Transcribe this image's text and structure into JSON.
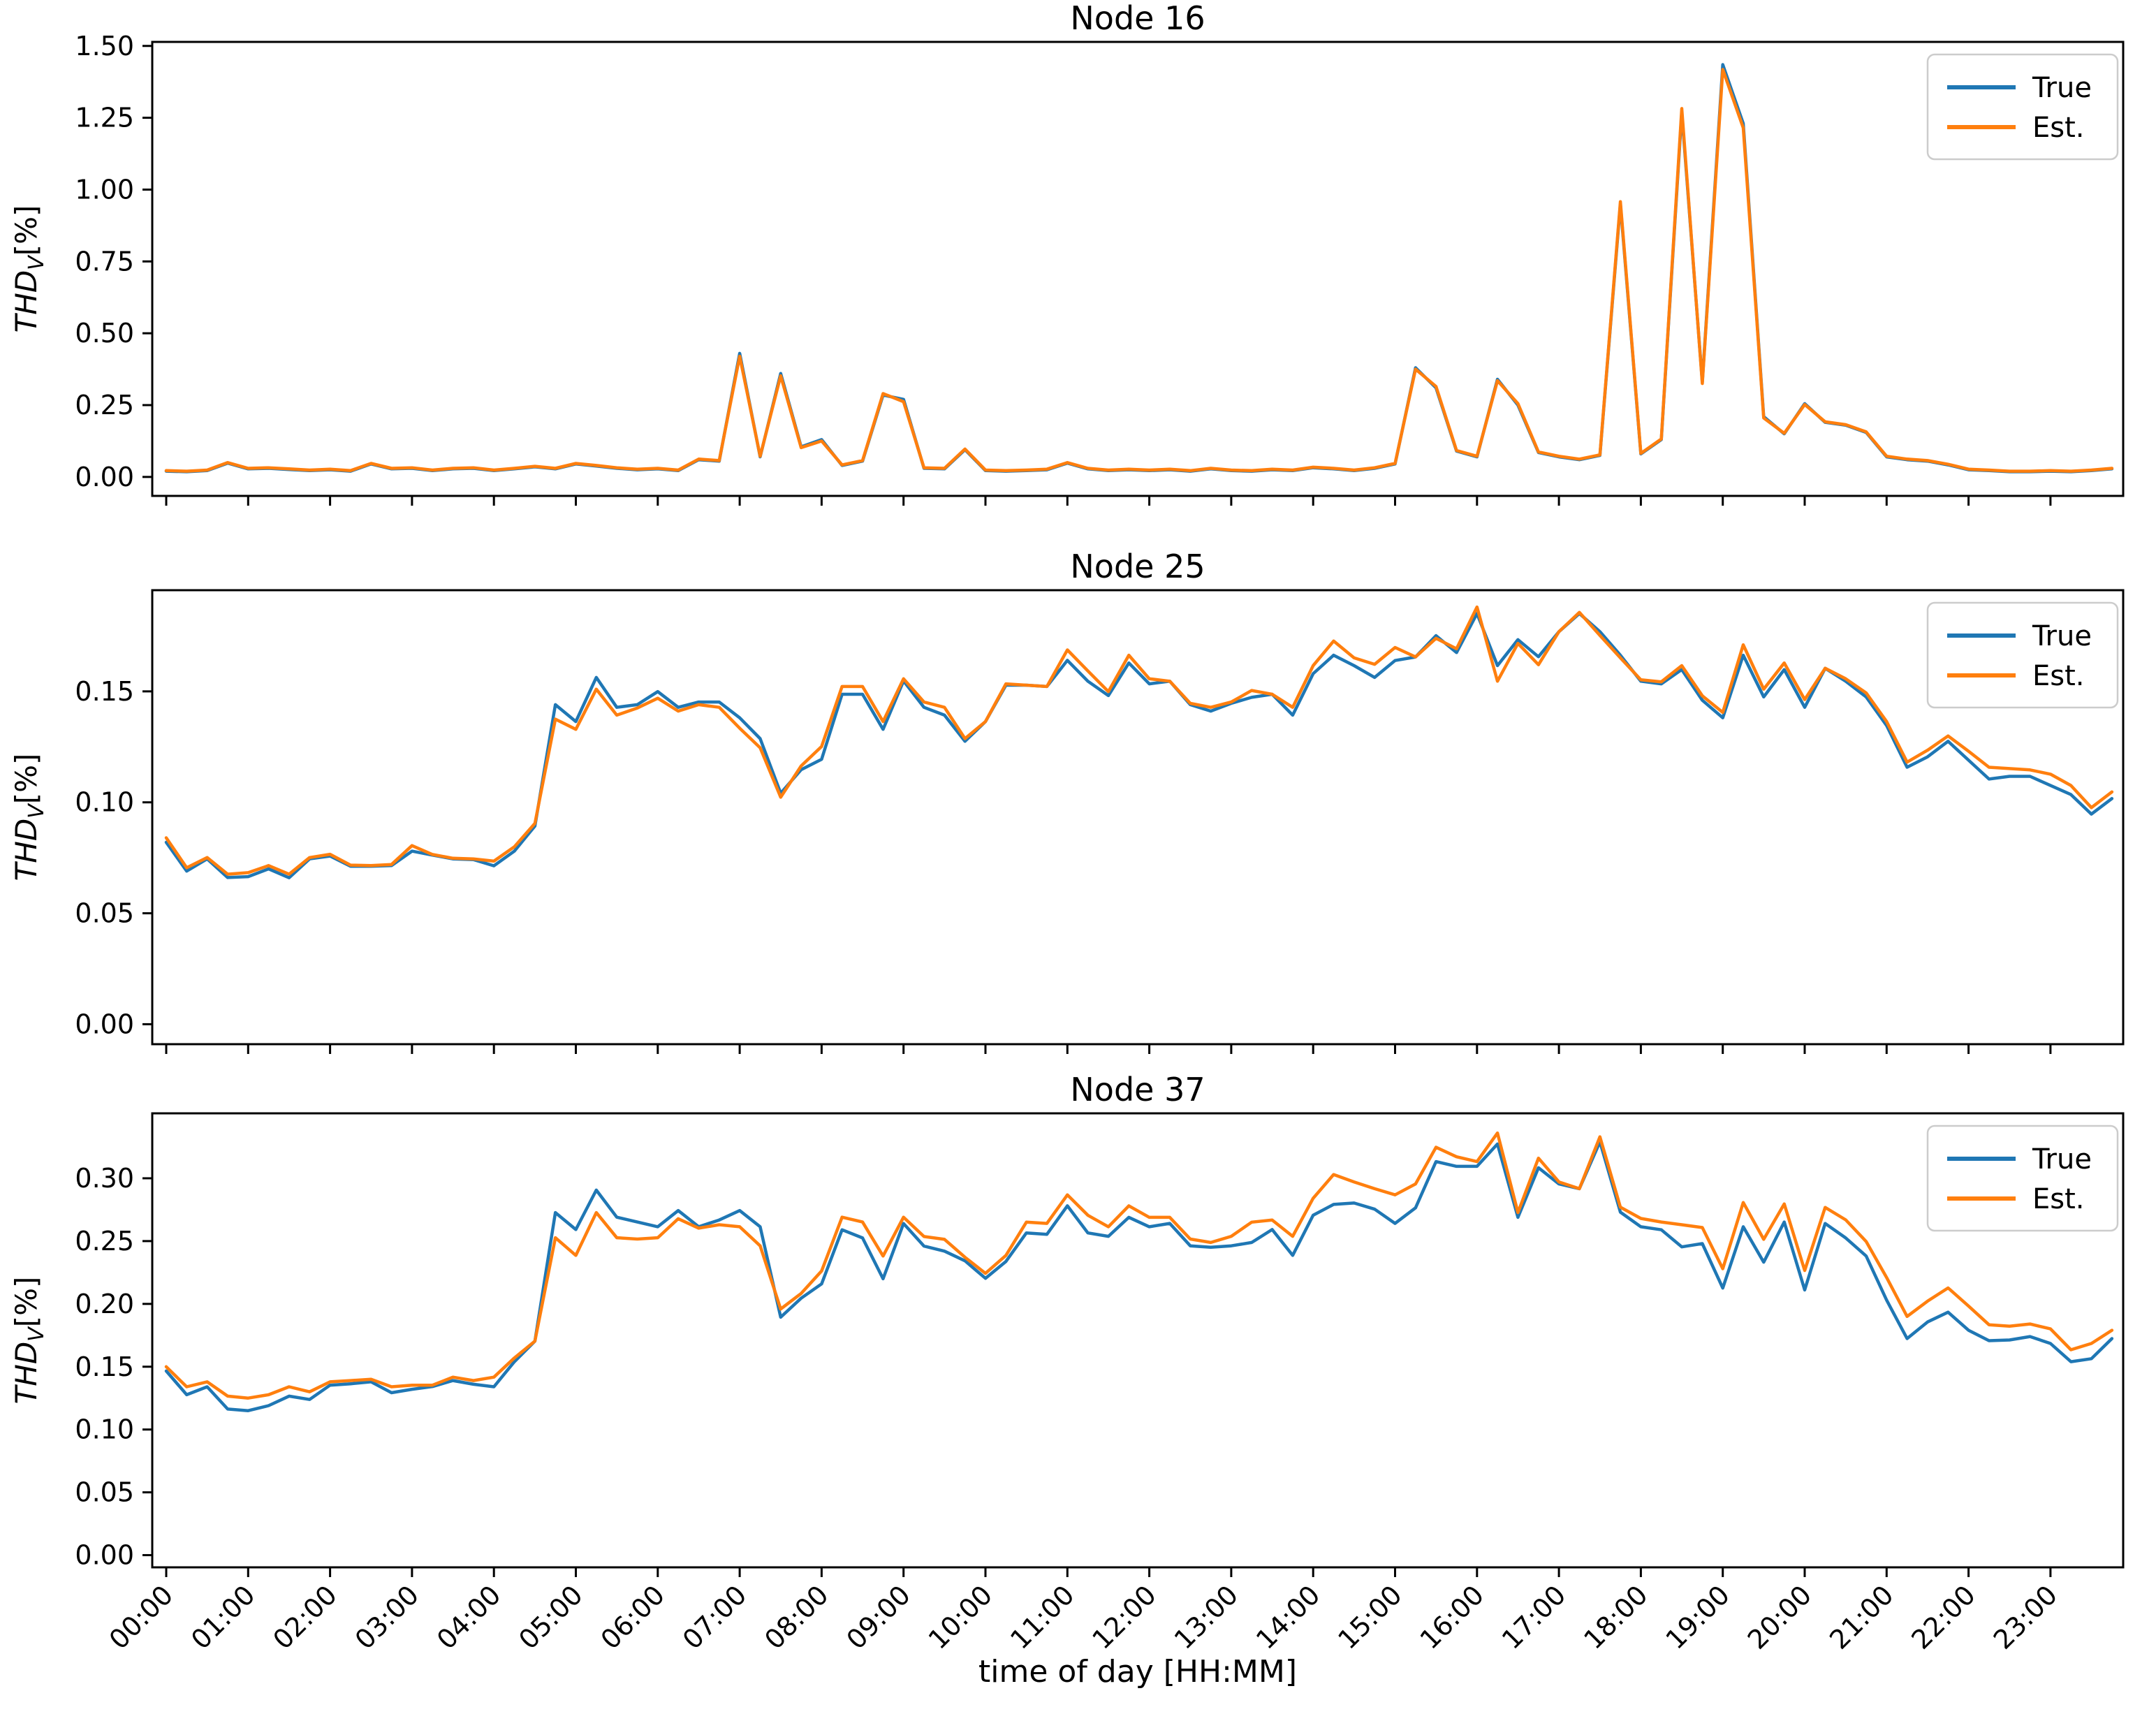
{
  "figure": {
    "xlabel": "time of day [HH:MM]",
    "ylabel": {
      "main": "THD",
      "sub": "V",
      "unit": "[%]"
    },
    "legend": {
      "true_label": "True",
      "est_label": "Est."
    },
    "colors": {
      "true": "#1f77b4",
      "est": "#ff7f0e",
      "spine": "#000000",
      "legend_edge": "#cccccc"
    },
    "xticklabels": [
      "00:00",
      "01:00",
      "02:00",
      "03:00",
      "04:00",
      "05:00",
      "06:00",
      "07:00",
      "08:00",
      "09:00",
      "10:00",
      "11:00",
      "12:00",
      "13:00",
      "14:00",
      "15:00",
      "16:00",
      "17:00",
      "18:00",
      "19:00",
      "20:00",
      "21:00",
      "22:00",
      "23:00"
    ]
  },
  "chart_data": [
    {
      "type": "line",
      "title": "Node 16",
      "xlabel": "time of day [HH:MM]",
      "ylabel": "THD_V[%]",
      "x_start": "00:00",
      "x_step_minutes": 15,
      "ylim": [
        -0.066,
        1.514
      ],
      "yticks": [
        0.0,
        0.25,
        0.5,
        0.75,
        1.0,
        1.25,
        1.5
      ],
      "grid": false,
      "legend_position": "upper right",
      "series": [
        {
          "name": "True",
          "values": [
            0.02,
            0.018,
            0.022,
            0.048,
            0.028,
            0.03,
            0.026,
            0.022,
            0.025,
            0.02,
            0.045,
            0.028,
            0.03,
            0.022,
            0.028,
            0.03,
            0.022,
            0.028,
            0.035,
            0.028,
            0.045,
            0.038,
            0.03,
            0.025,
            0.028,
            0.022,
            0.06,
            0.055,
            0.43,
            0.07,
            0.36,
            0.105,
            0.13,
            0.04,
            0.055,
            0.285,
            0.27,
            0.03,
            0.028,
            0.095,
            0.022,
            0.02,
            0.022,
            0.025,
            0.048,
            0.028,
            0.022,
            0.025,
            0.022,
            0.025,
            0.02,
            0.028,
            0.022,
            0.02,
            0.025,
            0.022,
            0.032,
            0.028,
            0.022,
            0.03,
            0.045,
            0.38,
            0.31,
            0.09,
            0.07,
            0.34,
            0.25,
            0.085,
            0.07,
            0.06,
            0.075,
            0.95,
            0.08,
            0.13,
            1.27,
            0.33,
            1.435,
            1.23,
            0.21,
            0.15,
            0.255,
            0.19,
            0.18,
            0.155,
            0.07,
            0.06,
            0.055,
            0.042,
            0.025,
            0.022,
            0.018,
            0.018,
            0.02,
            0.018,
            0.022,
            0.028
          ]
        },
        {
          "name": "Est.",
          "values": [
            0.022,
            0.02,
            0.024,
            0.05,
            0.03,
            0.032,
            0.028,
            0.024,
            0.027,
            0.022,
            0.047,
            0.03,
            0.032,
            0.024,
            0.03,
            0.032,
            0.024,
            0.03,
            0.037,
            0.03,
            0.047,
            0.04,
            0.032,
            0.027,
            0.03,
            0.024,
            0.062,
            0.057,
            0.42,
            0.072,
            0.352,
            0.102,
            0.125,
            0.042,
            0.057,
            0.29,
            0.262,
            0.032,
            0.03,
            0.097,
            0.024,
            0.022,
            0.024,
            0.027,
            0.05,
            0.03,
            0.024,
            0.027,
            0.024,
            0.027,
            0.022,
            0.03,
            0.024,
            0.022,
            0.027,
            0.024,
            0.034,
            0.03,
            0.024,
            0.032,
            0.047,
            0.375,
            0.315,
            0.092,
            0.072,
            0.335,
            0.255,
            0.087,
            0.072,
            0.062,
            0.077,
            0.958,
            0.082,
            0.132,
            1.282,
            0.325,
            1.418,
            1.215,
            0.205,
            0.152,
            0.252,
            0.192,
            0.182,
            0.157,
            0.072,
            0.062,
            0.057,
            0.044,
            0.027,
            0.024,
            0.02,
            0.02,
            0.022,
            0.02,
            0.024,
            0.03
          ]
        }
      ]
    },
    {
      "type": "line",
      "title": "Node 25",
      "xlabel": "time of day [HH:MM]",
      "ylabel": "THD_V[%]",
      "x_start": "00:00",
      "x_step_minutes": 15,
      "ylim": [
        -0.009,
        0.1956
      ],
      "yticks": [
        0.0,
        0.05,
        0.1,
        0.15
      ],
      "grid": false,
      "legend_position": "upper right",
      "series": [
        {
          "name": "True",
          "values": [
            0.082,
            0.069,
            0.0745,
            0.0661,
            0.0665,
            0.07,
            0.066,
            0.0745,
            0.0758,
            0.0712,
            0.0712,
            0.0715,
            0.078,
            0.0762,
            0.0745,
            0.0742,
            0.0714,
            0.078,
            0.0893,
            0.144,
            0.1364,
            0.1563,
            0.1428,
            0.144,
            0.1499,
            0.1428,
            0.1452,
            0.1452,
            0.1381,
            0.1287,
            0.1041,
            0.1147,
            0.1194,
            0.1487,
            0.1487,
            0.1329,
            0.1547,
            0.1428,
            0.1393,
            0.1275,
            0.1364,
            0.1528,
            0.1528,
            0.1522,
            0.164,
            0.1546,
            0.1481,
            0.1628,
            0.1534,
            0.1546,
            0.144,
            0.1411,
            0.1446,
            0.1473,
            0.1487,
            0.1393,
            0.158,
            0.1663,
            0.1616,
            0.1563,
            0.1639,
            0.1655,
            0.1751,
            0.1675,
            0.1851,
            0.1616,
            0.1733,
            0.1656,
            0.1769,
            0.1851,
            0.1769,
            0.1663,
            0.1546,
            0.1534,
            0.1598,
            0.146,
            0.1381,
            0.1663,
            0.1475,
            0.1598,
            0.1428,
            0.1604,
            0.1546,
            0.1475,
            0.1346,
            0.1158,
            0.1205,
            0.1275,
            0.119,
            0.1105,
            0.1117,
            0.1117,
            0.1076,
            0.1035,
            0.0947,
            0.1017
          ]
        },
        {
          "name": "Est.",
          "values": [
            0.084,
            0.0705,
            0.0751,
            0.0676,
            0.0683,
            0.0715,
            0.0676,
            0.0751,
            0.0766,
            0.0717,
            0.0715,
            0.072,
            0.0805,
            0.0765,
            0.0748,
            0.0745,
            0.0735,
            0.08,
            0.0905,
            0.1375,
            0.1329,
            0.151,
            0.1393,
            0.1425,
            0.1469,
            0.1411,
            0.144,
            0.1428,
            0.1334,
            0.1246,
            0.1023,
            0.1164,
            0.1252,
            0.1522,
            0.1522,
            0.1364,
            0.1557,
            0.1452,
            0.1428,
            0.1287,
            0.1364,
            0.1534,
            0.1528,
            0.1522,
            0.1687,
            0.1592,
            0.1499,
            0.1663,
            0.1557,
            0.1546,
            0.1446,
            0.1428,
            0.1452,
            0.1504,
            0.1487,
            0.1428,
            0.1616,
            0.1727,
            0.1651,
            0.1622,
            0.1698,
            0.1655,
            0.1739,
            0.1692,
            0.188,
            0.1546,
            0.1716,
            0.162,
            0.1769,
            0.1856,
            0.1752,
            0.1651,
            0.1552,
            0.1543,
            0.1616,
            0.148,
            0.1405,
            0.171,
            0.151,
            0.1628,
            0.1463,
            0.1604,
            0.1557,
            0.1493,
            0.1364,
            0.1181,
            0.1235,
            0.1299,
            0.123,
            0.1158,
            0.1152,
            0.1146,
            0.1127,
            0.1076,
            0.0976,
            0.1047
          ]
        }
      ]
    },
    {
      "type": "line",
      "title": "Node 37",
      "xlabel": "time of day [HH:MM]",
      "ylabel": "THD_V[%]",
      "x_start": "00:00",
      "x_step_minutes": 15,
      "ylim": [
        -0.0097,
        0.3517
      ],
      "yticks": [
        0.0,
        0.05,
        0.1,
        0.15,
        0.2,
        0.25,
        0.3
      ],
      "grid": false,
      "legend_position": "upper right",
      "series": [
        {
          "name": "True",
          "values": [
            0.1466,
            0.1277,
            0.134,
            0.1163,
            0.115,
            0.119,
            0.1266,
            0.1239,
            0.1353,
            0.1364,
            0.138,
            0.1293,
            0.132,
            0.1342,
            0.139,
            0.136,
            0.134,
            0.154,
            0.1704,
            0.2727,
            0.2592,
            0.2906,
            0.269,
            0.2652,
            0.2614,
            0.2743,
            0.2614,
            0.2668,
            0.2743,
            0.2614,
            0.1894,
            0.2045,
            0.2159,
            0.259,
            0.2525,
            0.22,
            0.264,
            0.246,
            0.242,
            0.2343,
            0.2204,
            0.2338,
            0.2565,
            0.2554,
            0.2781,
            0.2565,
            0.2538,
            0.2689,
            0.2614,
            0.2641,
            0.2462,
            0.2451,
            0.2462,
            0.2489,
            0.2592,
            0.2386,
            0.2706,
            0.2792,
            0.2803,
            0.2754,
            0.2641,
            0.2765,
            0.3133,
            0.3095,
            0.3095,
            0.3273,
            0.2689,
            0.3084,
            0.2955,
            0.2917,
            0.329,
            0.273,
            0.2614,
            0.259,
            0.2454,
            0.248,
            0.2126,
            0.2614,
            0.2332,
            0.2652,
            0.2111,
            0.264,
            0.2525,
            0.2381,
            0.203,
            0.1724,
            0.1856,
            0.1934,
            0.179,
            0.1707,
            0.1713,
            0.174,
            0.1685,
            0.154,
            0.1564,
            0.1724
          ]
        },
        {
          "name": "Est.",
          "values": [
            0.15,
            0.134,
            0.138,
            0.1266,
            0.125,
            0.1277,
            0.134,
            0.13,
            0.138,
            0.139,
            0.14,
            0.134,
            0.1353,
            0.1353,
            0.1417,
            0.139,
            0.1417,
            0.157,
            0.1704,
            0.2527,
            0.2386,
            0.2727,
            0.2527,
            0.2516,
            0.2527,
            0.2678,
            0.2603,
            0.263,
            0.2614,
            0.2462,
            0.1959,
            0.2083,
            0.2262,
            0.269,
            0.2652,
            0.2381,
            0.269,
            0.2536,
            0.2514,
            0.2371,
            0.2243,
            0.2386,
            0.2651,
            0.2641,
            0.2868,
            0.2706,
            0.2614,
            0.2781,
            0.2689,
            0.2689,
            0.2516,
            0.2489,
            0.2538,
            0.2651,
            0.2668,
            0.2538,
            0.2841,
            0.303,
            0.2971,
            0.2917,
            0.2868,
            0.2955,
            0.3247,
            0.3171,
            0.3133,
            0.336,
            0.2727,
            0.316,
            0.2971,
            0.2917,
            0.333,
            0.277,
            0.268,
            0.2652,
            0.263,
            0.2608,
            0.228,
            0.2807,
            0.2514,
            0.2796,
            0.2266,
            0.2768,
            0.2669,
            0.2497,
            0.221,
            0.19,
            0.2022,
            0.2127,
            0.1983,
            0.1834,
            0.1823,
            0.184,
            0.1801,
            0.1635,
            0.1685,
            0.179
          ]
        }
      ]
    }
  ]
}
